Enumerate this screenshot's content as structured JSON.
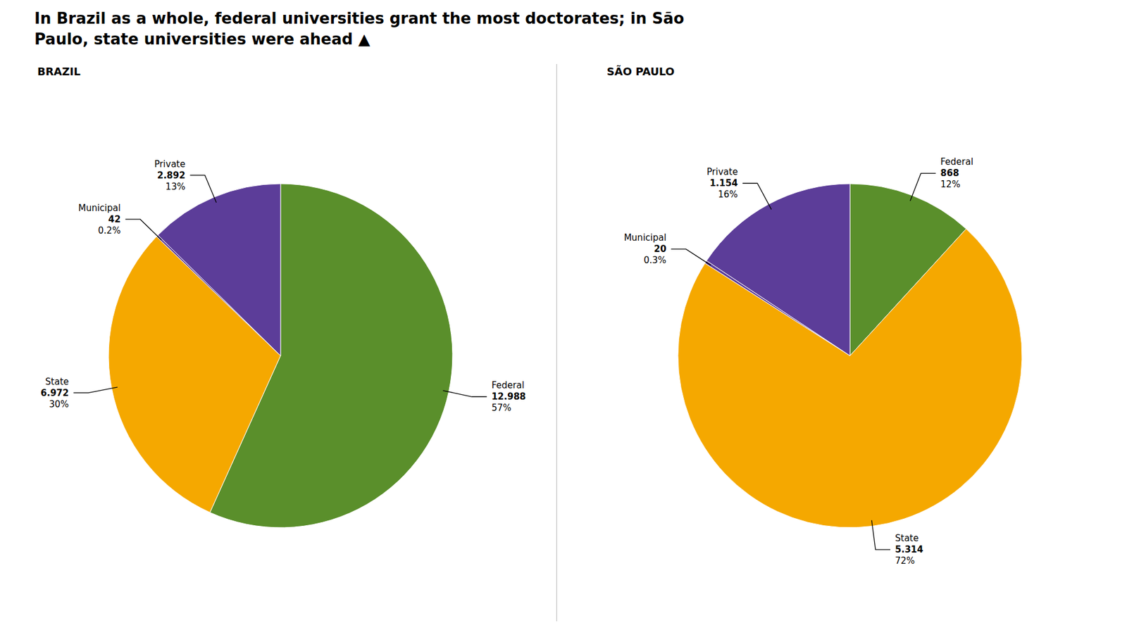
{
  "title": "In Brazil as a whole, federal universities grant the most doctorates; in São\nPaulo, state universities were ahead ▲",
  "chart_data": [
    {
      "type": "pie",
      "title": "BRAZIL",
      "categories": [
        "Federal",
        "State",
        "Municipal",
        "Private"
      ],
      "values": [
        12988,
        6972,
        42,
        2892
      ],
      "value_labels": [
        "12.988",
        "6.972",
        "42",
        "2.892"
      ],
      "share_labels": [
        "57%",
        "30%",
        "0.2%",
        "13%"
      ],
      "colors": [
        "#5a8f2b",
        "#f5a800",
        "#5c3d99",
        "#5c3d99"
      ]
    },
    {
      "type": "pie",
      "title": "SÃO PAULO",
      "categories": [
        "Federal",
        "State",
        "Municipal",
        "Private"
      ],
      "values": [
        868,
        5314,
        20,
        1154
      ],
      "value_labels": [
        "868",
        "5.314",
        "20",
        "1.154"
      ],
      "share_labels": [
        "12%",
        "72%",
        "0.3%",
        "16%"
      ],
      "colors": [
        "#5a8f2b",
        "#f5a800",
        "#5c3d99",
        "#5c3d99"
      ]
    }
  ]
}
